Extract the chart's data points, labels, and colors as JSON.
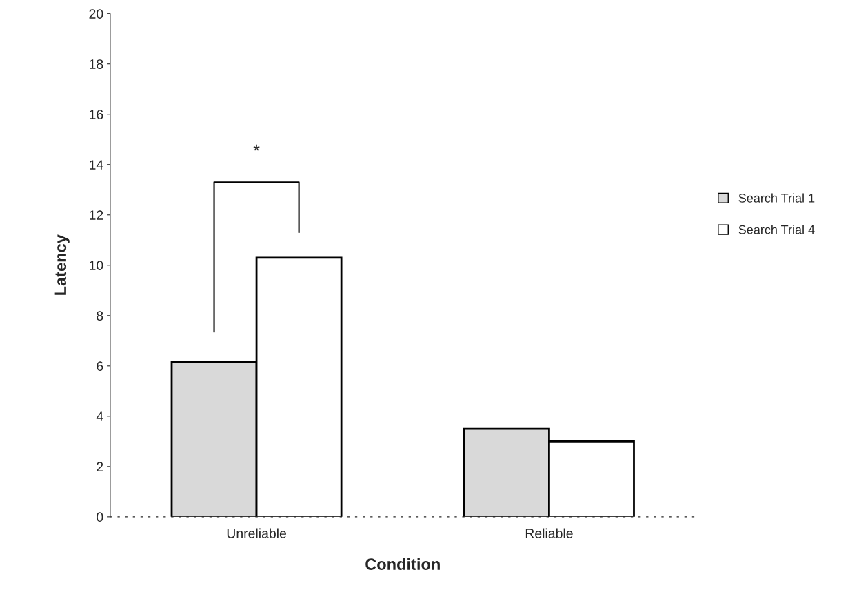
{
  "chart_data": {
    "type": "bar",
    "xlabel": "Condition",
    "ylabel": "Latency",
    "categories": [
      "Unreliable",
      "Reliable"
    ],
    "series": [
      {
        "name": "Search Trial 1",
        "color": "#d9d9d9",
        "values": [
          6.15,
          3.5
        ]
      },
      {
        "name": "Search Trial 4",
        "color": "#ffffff",
        "values": [
          10.3,
          3.0
        ]
      }
    ],
    "ylim": [
      0,
      20
    ],
    "yticks": [
      0,
      2,
      4,
      6,
      8,
      10,
      12,
      14,
      16,
      18,
      20
    ],
    "annotations": [
      "*"
    ],
    "legend": "right",
    "grid": false
  }
}
